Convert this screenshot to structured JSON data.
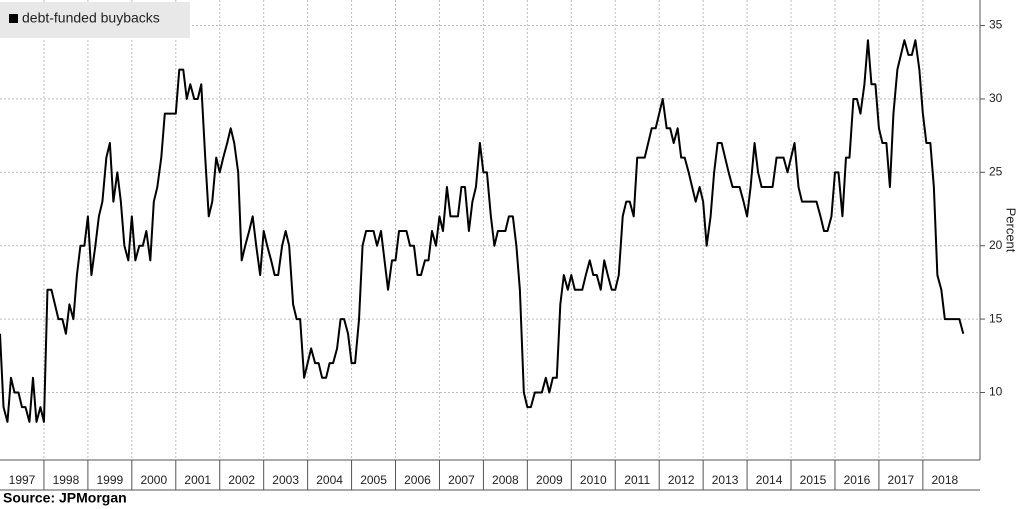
{
  "chart_data": {
    "type": "line",
    "y_label": "Percent",
    "source": "Source: JPMorgan",
    "legend": "top-left",
    "grid": true,
    "xlim": [
      1997,
      2019.3
    ],
    "xticks": [
      1997,
      1998,
      1999,
      2000,
      2001,
      2002,
      2003,
      2004,
      2005,
      2006,
      2007,
      2008,
      2009,
      2010,
      2011,
      2012,
      2013,
      2014,
      2015,
      2016,
      2017,
      2018
    ],
    "ylim": [
      5.4,
      36.4
    ],
    "yticks": [
      10,
      15,
      20,
      25,
      30,
      35
    ],
    "x": [
      1997.0,
      1997.08,
      1997.17,
      1997.25,
      1997.33,
      1997.42,
      1997.5,
      1997.58,
      1997.67,
      1997.75,
      1997.83,
      1997.92,
      1998.0,
      1998.08,
      1998.17,
      1998.25,
      1998.33,
      1998.42,
      1998.5,
      1998.58,
      1998.67,
      1998.75,
      1998.83,
      1998.92,
      1999.0,
      1999.08,
      1999.17,
      1999.25,
      1999.33,
      1999.42,
      1999.5,
      1999.58,
      1999.67,
      1999.75,
      1999.83,
      1999.92,
      2000.0,
      2000.08,
      2000.17,
      2000.25,
      2000.33,
      2000.42,
      2000.5,
      2000.58,
      2000.67,
      2000.75,
      2000.83,
      2000.92,
      2001.0,
      2001.08,
      2001.17,
      2001.25,
      2001.33,
      2001.42,
      2001.5,
      2001.58,
      2001.67,
      2001.75,
      2001.83,
      2001.92,
      2002.0,
      2002.08,
      2002.17,
      2002.25,
      2002.33,
      2002.42,
      2002.5,
      2002.58,
      2002.67,
      2002.75,
      2002.83,
      2002.92,
      2003.0,
      2003.08,
      2003.17,
      2003.25,
      2003.33,
      2003.42,
      2003.5,
      2003.58,
      2003.67,
      2003.75,
      2003.83,
      2003.92,
      2004.0,
      2004.08,
      2004.17,
      2004.25,
      2004.33,
      2004.42,
      2004.5,
      2004.58,
      2004.67,
      2004.75,
      2004.83,
      2004.92,
      2005.0,
      2005.08,
      2005.17,
      2005.25,
      2005.33,
      2005.42,
      2005.5,
      2005.58,
      2005.67,
      2005.75,
      2005.83,
      2005.92,
      2006.0,
      2006.08,
      2006.17,
      2006.25,
      2006.33,
      2006.42,
      2006.5,
      2006.58,
      2006.67,
      2006.75,
      2006.83,
      2006.92,
      2007.0,
      2007.08,
      2007.17,
      2007.25,
      2007.33,
      2007.42,
      2007.5,
      2007.58,
      2007.67,
      2007.75,
      2007.83,
      2007.92,
      2008.0,
      2008.08,
      2008.17,
      2008.25,
      2008.33,
      2008.42,
      2008.5,
      2008.58,
      2008.67,
      2008.75,
      2008.83,
      2008.92,
      2009.0,
      2009.08,
      2009.17,
      2009.25,
      2009.33,
      2009.42,
      2009.5,
      2009.58,
      2009.67,
      2009.75,
      2009.83,
      2009.92,
      2010.0,
      2010.08,
      2010.17,
      2010.25,
      2010.33,
      2010.42,
      2010.5,
      2010.58,
      2010.67,
      2010.75,
      2010.83,
      2010.92,
      2011.0,
      2011.08,
      2011.17,
      2011.25,
      2011.33,
      2011.42,
      2011.5,
      2011.58,
      2011.67,
      2011.75,
      2011.83,
      2011.92,
      2012.0,
      2012.08,
      2012.17,
      2012.25,
      2012.33,
      2012.42,
      2012.5,
      2012.58,
      2012.67,
      2012.75,
      2012.83,
      2012.92,
      2013.0,
      2013.08,
      2013.17,
      2013.25,
      2013.33,
      2013.42,
      2013.5,
      2013.58,
      2013.67,
      2013.75,
      2013.83,
      2013.92,
      2014.0,
      2014.08,
      2014.17,
      2014.25,
      2014.33,
      2014.42,
      2014.5,
      2014.58,
      2014.67,
      2014.75,
      2014.83,
      2014.92,
      2015.0,
      2015.08,
      2015.17,
      2015.25,
      2015.33,
      2015.42,
      2015.5,
      2015.58,
      2015.67,
      2015.75,
      2015.83,
      2015.92,
      2016.0,
      2016.08,
      2016.17,
      2016.25,
      2016.33,
      2016.42,
      2016.5,
      2016.58,
      2016.67,
      2016.75,
      2016.83,
      2016.92,
      2017.0,
      2017.08,
      2017.17,
      2017.25,
      2017.33,
      2017.42,
      2017.5,
      2017.58,
      2017.67,
      2017.75,
      2017.83,
      2017.92,
      2018.0,
      2018.08,
      2018.17,
      2018.25,
      2018.33,
      2018.42,
      2018.5,
      2018.58,
      2018.67,
      2018.75,
      2018.83,
      2018.92
    ],
    "series": [
      {
        "name": "debt-funded buybacks",
        "color": "#000000",
        "values": [
          14,
          9,
          8,
          11,
          10,
          10,
          9,
          9,
          8,
          11,
          8,
          9,
          8,
          17,
          17,
          16,
          15,
          15,
          14,
          16,
          15,
          18,
          20,
          20,
          22,
          18,
          20,
          22,
          23,
          26,
          27,
          23,
          25,
          23,
          20,
          19,
          22,
          19,
          20,
          20,
          21,
          19,
          23,
          24,
          26,
          29,
          29,
          29,
          29,
          32,
          32,
          30,
          31,
          30,
          30,
          31,
          26,
          22,
          23,
          26,
          25,
          26,
          27,
          28,
          27,
          25,
          19,
          20,
          21,
          22,
          20,
          18,
          21,
          20,
          19,
          18,
          18,
          20,
          21,
          20,
          16,
          15,
          15,
          11,
          12,
          13,
          12,
          12,
          11,
          11,
          12,
          12,
          13,
          15,
          15,
          14,
          12,
          12,
          15,
          20,
          21,
          21,
          21,
          20,
          21,
          19,
          17,
          19,
          19,
          21,
          21,
          21,
          20,
          20,
          18,
          18,
          19,
          19,
          21,
          20,
          22,
          21,
          24,
          22,
          22,
          22,
          24,
          24,
          21,
          23,
          24,
          27,
          25,
          25,
          22,
          20,
          21,
          21,
          21,
          22,
          22,
          20,
          17,
          10,
          9,
          9,
          10,
          10,
          10,
          11,
          10,
          11,
          11,
          16,
          18,
          17,
          18,
          17,
          17,
          17,
          18,
          19,
          18,
          18,
          17,
          19,
          18,
          17,
          17,
          18,
          22,
          23,
          23,
          22,
          26,
          26,
          26,
          27,
          28,
          28,
          29,
          30,
          28,
          28,
          27,
          28,
          26,
          26,
          25,
          24,
          23,
          24,
          23,
          20,
          22,
          25,
          27,
          27,
          26,
          25,
          24,
          24,
          24,
          23,
          22,
          24,
          27,
          25,
          24,
          24,
          24,
          24,
          26,
          26,
          26,
          25,
          26,
          27,
          24,
          23,
          23,
          23,
          23,
          23,
          22,
          21,
          21,
          22,
          25,
          25,
          22,
          26,
          26,
          30,
          30,
          29,
          31,
          34,
          31,
          31,
          28,
          27,
          27,
          24,
          29,
          32,
          33,
          34,
          33,
          33,
          34,
          32,
          29,
          27,
          27,
          24,
          18,
          17,
          15,
          15,
          15,
          15,
          15,
          14
        ]
      }
    ]
  }
}
